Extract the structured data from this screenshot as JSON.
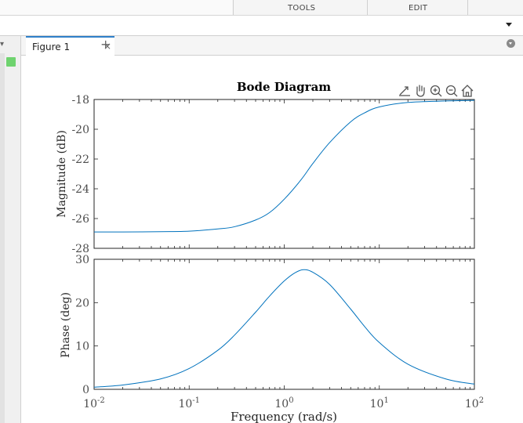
{
  "toolstrip": {
    "tabs": [
      "TOOLS",
      "EDIT"
    ]
  },
  "figure_tab": {
    "label": "Figure 1",
    "close": "×",
    "add": "+"
  },
  "axes_toolbar": {
    "icons": [
      "export-icon",
      "pan-icon",
      "zoom-in-icon",
      "zoom-out-icon",
      "home-icon"
    ]
  },
  "colors": {
    "line": "#0072bd",
    "axis": "#262626",
    "tab_accent": "#2f80c9",
    "status_green": "#6fd36f"
  },
  "chart_data": {
    "type": "line",
    "title": "Bode Diagram",
    "xlabel": "Frequency  (rad/s)",
    "xscale": "log",
    "xlim": [
      0.01,
      100
    ],
    "xticks": [
      0.01,
      0.1,
      1,
      10,
      100
    ],
    "xtick_exponents": [
      "-2",
      "-1",
      "0",
      "1",
      "2"
    ],
    "xtick_base": "10",
    "grid": false,
    "subplots": [
      {
        "name": "magnitude",
        "ylabel": "Magnitude (dB)",
        "ylim": [
          -28,
          -18
        ],
        "yticks": [
          -28,
          -26,
          -24,
          -22,
          -20,
          -18
        ],
        "x": [
          0.01,
          0.02,
          0.05,
          0.1,
          0.2,
          0.3,
          0.5,
          0.7,
          1,
          1.5,
          2,
          3,
          5,
          7,
          10,
          20,
          50,
          100
        ],
        "y": [
          -26.9,
          -26.9,
          -26.88,
          -26.85,
          -26.7,
          -26.55,
          -26.1,
          -25.6,
          -24.7,
          -23.4,
          -22.3,
          -20.9,
          -19.5,
          -18.9,
          -18.5,
          -18.2,
          -18.1,
          -18.06
        ]
      },
      {
        "name": "phase",
        "ylabel": "Phase (deg)",
        "ylim": [
          0,
          30
        ],
        "yticks": [
          0,
          10,
          20,
          30
        ],
        "x": [
          0.01,
          0.02,
          0.05,
          0.1,
          0.2,
          0.3,
          0.5,
          0.7,
          1,
          1.3,
          1.6,
          2,
          3,
          5,
          7,
          10,
          20,
          50,
          100
        ],
        "y": [
          0.5,
          1.0,
          2.4,
          4.8,
          9.0,
          12.5,
          17.8,
          21.5,
          25.0,
          26.9,
          27.6,
          27.0,
          24.2,
          18.5,
          14.5,
          10.8,
          5.8,
          2.4,
          1.2
        ]
      }
    ]
  }
}
